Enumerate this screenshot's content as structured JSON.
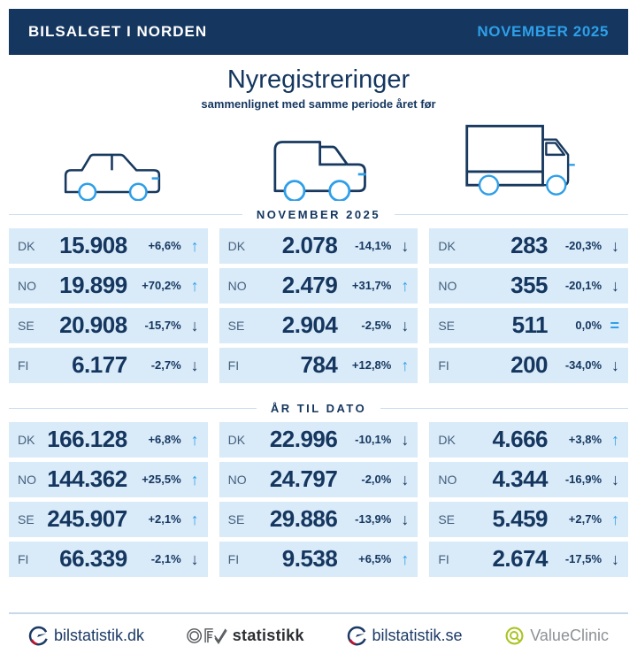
{
  "header": {
    "brand": "BILSALGET I NORDEN",
    "period": "NOVEMBER 2025"
  },
  "intro": {
    "title": "Nyregistreringer",
    "subtitle": "sammenlignet med samme periode året før"
  },
  "colors": {
    "navy": "#14365f",
    "accent_blue": "#2e9fe8",
    "row_background": "#d9eaf8",
    "divider": "#ccdded",
    "logo_red": "#c8102e",
    "valueclinic_green": "#a9c425"
  },
  "vehicle_icons": [
    "car-icon",
    "van-icon",
    "truck-icon"
  ],
  "chart_data": {
    "type": "table",
    "title": "Nyregistreringer",
    "subtitle": "sammenlignet med samme periode året før",
    "columns": [
      "car",
      "van",
      "truck"
    ],
    "row_countries": [
      "DK",
      "NO",
      "SE",
      "FI"
    ],
    "sections": [
      {
        "label": "NOVEMBER 2025",
        "data": [
          [
            {
              "country": "DK",
              "value": "15.908",
              "change": "+6,6%",
              "trend": "up"
            },
            {
              "country": "NO",
              "value": "19.899",
              "change": "+70,2%",
              "trend": "up"
            },
            {
              "country": "SE",
              "value": "20.908",
              "change": "-15,7%",
              "trend": "down"
            },
            {
              "country": "FI",
              "value": "6.177",
              "change": "-2,7%",
              "trend": "down"
            }
          ],
          [
            {
              "country": "DK",
              "value": "2.078",
              "change": "-14,1%",
              "trend": "down"
            },
            {
              "country": "NO",
              "value": "2.479",
              "change": "+31,7%",
              "trend": "up"
            },
            {
              "country": "SE",
              "value": "2.904",
              "change": "-2,5%",
              "trend": "down"
            },
            {
              "country": "FI",
              "value": "784",
              "change": "+12,8%",
              "trend": "up"
            }
          ],
          [
            {
              "country": "DK",
              "value": "283",
              "change": "-20,3%",
              "trend": "down"
            },
            {
              "country": "NO",
              "value": "355",
              "change": "-20,1%",
              "trend": "down"
            },
            {
              "country": "SE",
              "value": "511",
              "change": "0,0%",
              "trend": "equal"
            },
            {
              "country": "FI",
              "value": "200",
              "change": "-34,0%",
              "trend": "down"
            }
          ]
        ]
      },
      {
        "label": "ÅR TIL DATO",
        "data": [
          [
            {
              "country": "DK",
              "value": "166.128",
              "change": "+6,8%",
              "trend": "up"
            },
            {
              "country": "NO",
              "value": "144.362",
              "change": "+25,5%",
              "trend": "up"
            },
            {
              "country": "SE",
              "value": "245.907",
              "change": "+2,1%",
              "trend": "up"
            },
            {
              "country": "FI",
              "value": "66.339",
              "change": "-2,1%",
              "trend": "down"
            }
          ],
          [
            {
              "country": "DK",
              "value": "22.996",
              "change": "-10,1%",
              "trend": "down"
            },
            {
              "country": "NO",
              "value": "24.797",
              "change": "-2,0%",
              "trend": "down"
            },
            {
              "country": "SE",
              "value": "29.886",
              "change": "-13,9%",
              "trend": "down"
            },
            {
              "country": "FI",
              "value": "9.538",
              "change": "+6,5%",
              "trend": "up"
            }
          ],
          [
            {
              "country": "DK",
              "value": "4.666",
              "change": "+3,8%",
              "trend": "up"
            },
            {
              "country": "NO",
              "value": "4.344",
              "change": "-16,9%",
              "trend": "down"
            },
            {
              "country": "SE",
              "value": "5.459",
              "change": "+2,7%",
              "trend": "up"
            },
            {
              "country": "FI",
              "value": "2.674",
              "change": "-17,5%",
              "trend": "down"
            }
          ]
        ]
      }
    ]
  },
  "footer": {
    "logos": [
      {
        "icon": "gauge-icon",
        "label": "bilstatistik.dk"
      },
      {
        "icon": "ofv-icon",
        "label": "statistikk"
      },
      {
        "icon": "gauge-icon",
        "label": "bilstatistik.se"
      },
      {
        "icon": "q-ring-icon",
        "label": "ValueClinic"
      }
    ]
  }
}
